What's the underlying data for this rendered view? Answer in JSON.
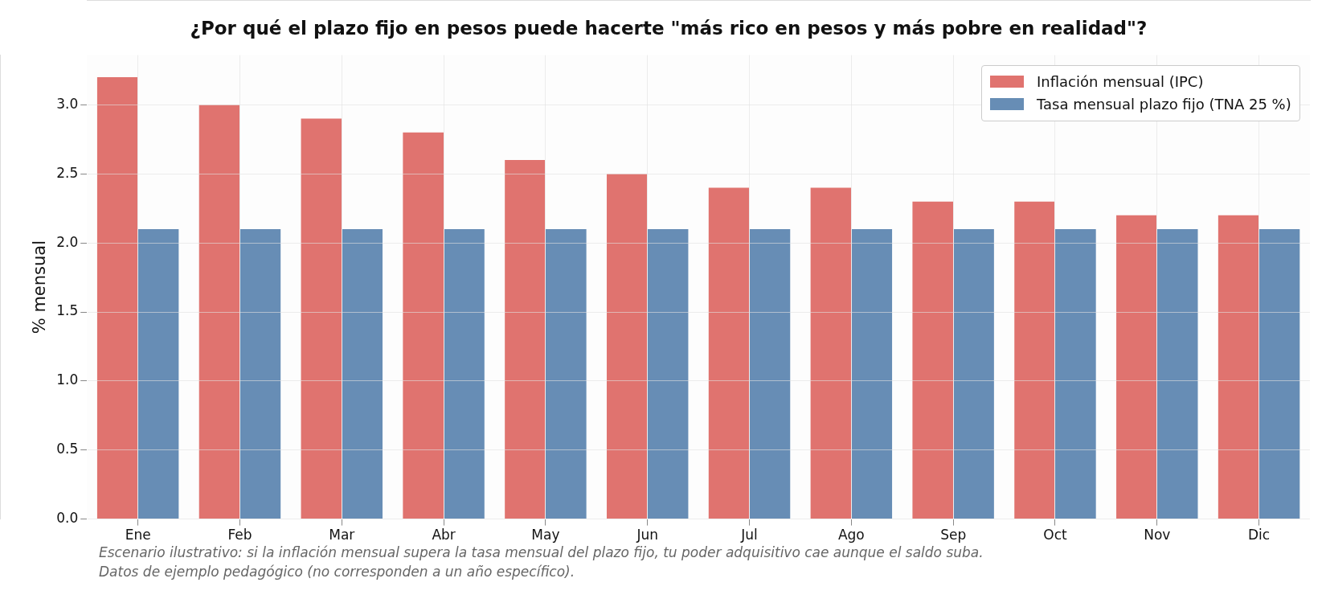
{
  "chart_data": {
    "type": "bar",
    "title": "¿Por qué el plazo fijo en pesos puede hacerte \"más rico en pesos y más pobre en realidad\"?",
    "ylabel": "% mensual",
    "categories": [
      "Ene",
      "Feb",
      "Mar",
      "Abr",
      "May",
      "Jun",
      "Jul",
      "Ago",
      "Sep",
      "Oct",
      "Nov",
      "Dic"
    ],
    "series": [
      {
        "name": "Inflación mensual (IPC)",
        "color": "#e0736f",
        "values": [
          3.2,
          3.0,
          2.9,
          2.8,
          2.6,
          2.5,
          2.4,
          2.4,
          2.3,
          2.3,
          2.2,
          2.2
        ]
      },
      {
        "name": "Tasa mensual plazo fijo (TNA 25 %)",
        "color": "#678db5",
        "values": [
          2.1,
          2.1,
          2.1,
          2.1,
          2.1,
          2.1,
          2.1,
          2.1,
          2.1,
          2.1,
          2.1,
          2.1
        ]
      }
    ],
    "ylim": [
      0,
      3.36
    ],
    "yticks": [
      {
        "value": 0,
        "label": "0.0"
      },
      {
        "value": 0.5,
        "label": "0.5"
      },
      {
        "value": 1,
        "label": "1.0"
      },
      {
        "value": 1.5,
        "label": "1.5"
      },
      {
        "value": 2,
        "label": "2.0"
      },
      {
        "value": 2.5,
        "label": "2.5"
      },
      {
        "value": 3,
        "label": "3.0"
      }
    ],
    "grid": true,
    "legend": "top right",
    "annotations": [
      "Escenario ilustrativo: si la inflación mensual supera la tasa mensual del plazo fijo, tu poder adquisitivo cae aunque el saldo suba.",
      "Datos de ejemplo pedagógico (no corresponden a un año específico)."
    ]
  }
}
